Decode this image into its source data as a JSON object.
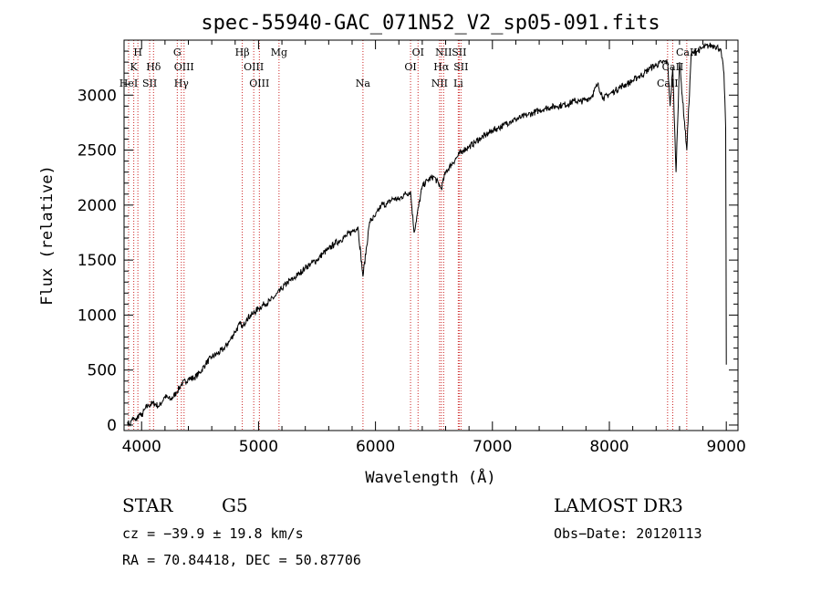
{
  "chart_data": {
    "type": "line",
    "title": "spec-55940-GAC_071N52_V2_sp05-091.fits",
    "xlabel": "Wavelength (Å)",
    "ylabel": "Flux (relative)",
    "xlim": [
      3850,
      9100
    ],
    "ylim": [
      -50,
      3500
    ],
    "xticks": [
      4000,
      5000,
      6000,
      7000,
      8000,
      9000
    ],
    "yticks": [
      0,
      500,
      1000,
      1500,
      2000,
      2500,
      3000
    ],
    "spectrum": {
      "name": "flux",
      "x": [
        3880,
        3900,
        3920,
        3950,
        3980,
        4000,
        4030,
        4060,
        4100,
        4150,
        4200,
        4250,
        4300,
        4340,
        4400,
        4450,
        4500,
        4550,
        4600,
        4650,
        4700,
        4750,
        4800,
        4850,
        4861,
        4900,
        4950,
        5000,
        5050,
        5100,
        5150,
        5200,
        5250,
        5300,
        5350,
        5400,
        5450,
        5500,
        5550,
        5600,
        5650,
        5700,
        5750,
        5800,
        5850,
        5893,
        5950,
        6000,
        6050,
        6100,
        6150,
        6200,
        6250,
        6300,
        6330,
        6400,
        6450,
        6500,
        6563,
        6600,
        6650,
        6700,
        6750,
        6800,
        6850,
        6900,
        6950,
        7000,
        7050,
        7100,
        7150,
        7200,
        7250,
        7300,
        7350,
        7400,
        7450,
        7500,
        7550,
        7600,
        7650,
        7700,
        7750,
        7800,
        7850,
        7900,
        7950,
        8000,
        8050,
        8100,
        8150,
        8200,
        8250,
        8300,
        8350,
        8400,
        8450,
        8498,
        8520,
        8542,
        8570,
        8600,
        8662,
        8700,
        8750,
        8800,
        8850,
        8900,
        8950,
        8980,
        8995,
        9000
      ],
      "values": [
        30,
        0,
        60,
        40,
        100,
        80,
        150,
        180,
        200,
        170,
        260,
        230,
        300,
        370,
        420,
        430,
        480,
        560,
        620,
        650,
        690,
        760,
        850,
        930,
        880,
        970,
        1010,
        1060,
        1100,
        1130,
        1180,
        1240,
        1300,
        1330,
        1380,
        1430,
        1470,
        1500,
        1560,
        1600,
        1650,
        1680,
        1720,
        1760,
        1800,
        1350,
        1850,
        1900,
        2000,
        2010,
        2060,
        2050,
        2100,
        2120,
        1750,
        2170,
        2230,
        2260,
        2150,
        2300,
        2370,
        2440,
        2500,
        2530,
        2570,
        2610,
        2640,
        2680,
        2700,
        2730,
        2760,
        2780,
        2800,
        2820,
        2840,
        2860,
        2880,
        2890,
        2900,
        2910,
        2920,
        2950,
        2940,
        2960,
        2990,
        3100,
        2970,
        3010,
        3040,
        3080,
        3100,
        3130,
        3170,
        3200,
        3250,
        3270,
        3300,
        3300,
        2900,
        3250,
        2300,
        3300,
        2500,
        3370,
        3400,
        3430,
        3450,
        3450,
        3420,
        3200,
        2700,
        550
      ]
    },
    "line_ids": [
      {
        "label": "H",
        "x": 3968,
        "row": 0
      },
      {
        "label": "K",
        "x": 3933,
        "row": 1
      },
      {
        "label": "HeI",
        "x": 3889,
        "row": 2
      },
      {
        "label": "SII",
        "x": 4069,
        "row": 2
      },
      {
        "label": "Hδ",
        "x": 4102,
        "row": 1
      },
      {
        "label": "G",
        "x": 4305,
        "row": 0
      },
      {
        "label": "OIII",
        "x": 4363,
        "row": 1
      },
      {
        "label": "Hγ",
        "x": 4340,
        "row": 2
      },
      {
        "label": "Hβ",
        "x": 4861,
        "row": 0
      },
      {
        "label": "OIII",
        "x": 4959,
        "row": 1
      },
      {
        "label": "OIII",
        "x": 5007,
        "row": 2
      },
      {
        "label": "Mg",
        "x": 5175,
        "row": 0
      },
      {
        "label": "Na",
        "x": 5893,
        "row": 2
      },
      {
        "label": "OI",
        "x": 6364,
        "row": 0
      },
      {
        "label": "OI",
        "x": 6300,
        "row": 1
      },
      {
        "label": "NII",
        "x": 6583,
        "row": 0
      },
      {
        "label": "SII",
        "x": 6716,
        "row": 0
      },
      {
        "label": "Hα",
        "x": 6563,
        "row": 1
      },
      {
        "label": "SII",
        "x": 6731,
        "row": 1
      },
      {
        "label": "NII",
        "x": 6548,
        "row": 2
      },
      {
        "label": "Li",
        "x": 6708,
        "row": 2
      },
      {
        "label": "CaII",
        "x": 8662,
        "row": 0
      },
      {
        "label": "CaII",
        "x": 8542,
        "row": 1
      },
      {
        "label": "CaII",
        "x": 8498,
        "row": 2
      }
    ],
    "line_color": "#cc2222"
  },
  "info": {
    "object_class": "STAR",
    "subclass": "G5",
    "survey": "LAMOST DR3",
    "redshift": "cz = −39.9 ± 19.8 km/s",
    "obs_date": "Obs−Date: 20120113",
    "coords": "RA =  70.84418, DEC =  50.87706"
  }
}
